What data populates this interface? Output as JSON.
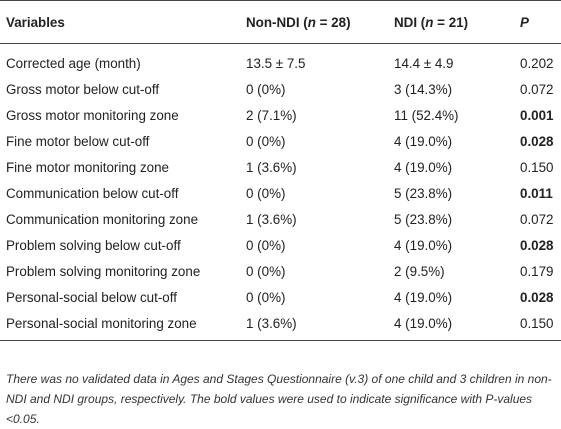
{
  "table": {
    "headers": {
      "variables": "Variables",
      "non_ndi_prefix": "Non-NDI (",
      "non_ndi_n": "n",
      "non_ndi_suffix": " = 28)",
      "ndi_prefix": "NDI (",
      "ndi_n": "n",
      "ndi_suffix": " = 21)",
      "p": "P"
    },
    "rows": [
      {
        "variable": "Corrected age (month)",
        "non_ndi": "13.5 ± 7.5",
        "ndi": "14.4 ± 4.9",
        "p": "0.202",
        "p_bold": false
      },
      {
        "variable": "Gross motor below cut-off",
        "non_ndi": "0 (0%)",
        "ndi": "3 (14.3%)",
        "p": "0.072",
        "p_bold": false
      },
      {
        "variable": "Gross motor monitoring zone",
        "non_ndi": "2 (7.1%)",
        "ndi": "11 (52.4%)",
        "p": "0.001",
        "p_bold": true
      },
      {
        "variable": "Fine motor below cut-off",
        "non_ndi": "0 (0%)",
        "ndi": "4 (19.0%)",
        "p": "0.028",
        "p_bold": true
      },
      {
        "variable": "Fine motor monitoring zone",
        "non_ndi": "1 (3.6%)",
        "ndi": "4 (19.0%)",
        "p": "0.150",
        "p_bold": false
      },
      {
        "variable": "Communication below cut-off",
        "non_ndi": "0 (0%)",
        "ndi": "5 (23.8%)",
        "p": "0.011",
        "p_bold": true
      },
      {
        "variable": "Communication monitoring zone",
        "non_ndi": "1 (3.6%)",
        "ndi": "5 (23.8%)",
        "p": "0.072",
        "p_bold": false
      },
      {
        "variable": "Problem solving below cut-off",
        "non_ndi": "0 (0%)",
        "ndi": "4 (19.0%)",
        "p": "0.028",
        "p_bold": true
      },
      {
        "variable": "Problem solving monitoring zone",
        "non_ndi": "0 (0%)",
        "ndi": "2 (9.5%)",
        "p": "0.179",
        "p_bold": false
      },
      {
        "variable": "Personal-social below cut-off",
        "non_ndi": "0 (0%)",
        "ndi": "4 (19.0%)",
        "p": "0.028",
        "p_bold": true
      },
      {
        "variable": "Personal-social monitoring zone",
        "non_ndi": "1 (3.6%)",
        "ndi": "4 (19.0%)",
        "p": "0.150",
        "p_bold": false
      }
    ]
  },
  "footnote": "There was no validated data in Ages and Stages Questionnaire (v.3) of one child and 3 children in non-NDI and NDI groups, respectively. The bold values were used to indicate significance with P-values <0.05."
}
